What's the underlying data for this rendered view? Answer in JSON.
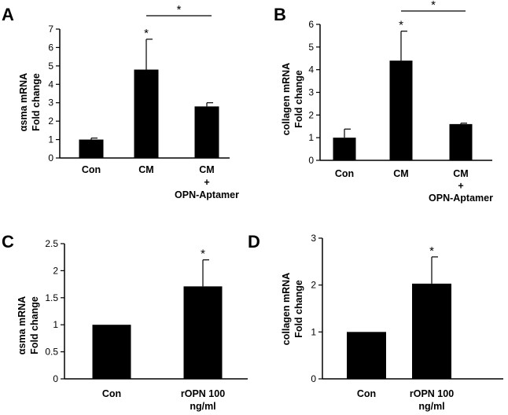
{
  "chart_data": [
    {
      "panel": "A",
      "type": "bar",
      "ylabel_lines": [
        "αsma mRNA",
        "Fold change"
      ],
      "categories": [
        [
          "Con"
        ],
        [
          "CM"
        ],
        [
          "CM",
          "+",
          "OPN-Aptamer"
        ]
      ],
      "values": [
        1.0,
        4.8,
        2.8
      ],
      "errors": [
        0.08,
        1.65,
        0.2
      ],
      "ylim": [
        0,
        7
      ],
      "yticks": [
        "0",
        "1",
        "2",
        "3",
        "4",
        "5",
        "6",
        "7"
      ],
      "bar_annotations": [
        "",
        "*",
        ""
      ],
      "bracket": {
        "from": 1,
        "to": 2,
        "label": "*"
      }
    },
    {
      "panel": "B",
      "type": "bar",
      "ylabel_lines": [
        "collagen mRNA",
        "Fold change"
      ],
      "categories": [
        [
          "Con"
        ],
        [
          "CM"
        ],
        [
          "CM",
          "+",
          "OPN-Aptamer"
        ]
      ],
      "values": [
        1.0,
        4.4,
        1.6
      ],
      "errors": [
        0.38,
        1.3,
        0.04
      ],
      "ylim": [
        0,
        6
      ],
      "yticks": [
        "0",
        "1",
        "2",
        "3",
        "4",
        "5",
        "6"
      ],
      "bar_annotations": [
        "",
        "*",
        ""
      ],
      "bracket": {
        "from": 1,
        "to": 2,
        "label": "*"
      }
    },
    {
      "panel": "C",
      "type": "bar",
      "ylabel_lines": [
        "αsma mRNA",
        "Fold change"
      ],
      "categories": [
        [
          "Con"
        ],
        [
          "rOPN 100",
          "ng/ml"
        ]
      ],
      "values": [
        1.0,
        1.71
      ],
      "errors": [
        0,
        0.49
      ],
      "ylim": [
        0,
        2.5
      ],
      "yticks": [
        "0",
        "0.5",
        "1",
        "1.5",
        "2",
        "2.5"
      ],
      "bar_annotations": [
        "",
        "*"
      ],
      "bracket": null
    },
    {
      "panel": "D",
      "type": "bar",
      "ylabel_lines": [
        "collagen mRNA",
        "Fold change"
      ],
      "categories": [
        [
          "Con"
        ],
        [
          "rOPN 100",
          "ng/ml"
        ]
      ],
      "values": [
        1.0,
        2.03
      ],
      "errors": [
        0,
        0.57
      ],
      "ylim": [
        0,
        3
      ],
      "yticks": [
        "0",
        "1",
        "2",
        "3"
      ],
      "bar_annotations": [
        "",
        "*"
      ],
      "bracket": null
    }
  ]
}
